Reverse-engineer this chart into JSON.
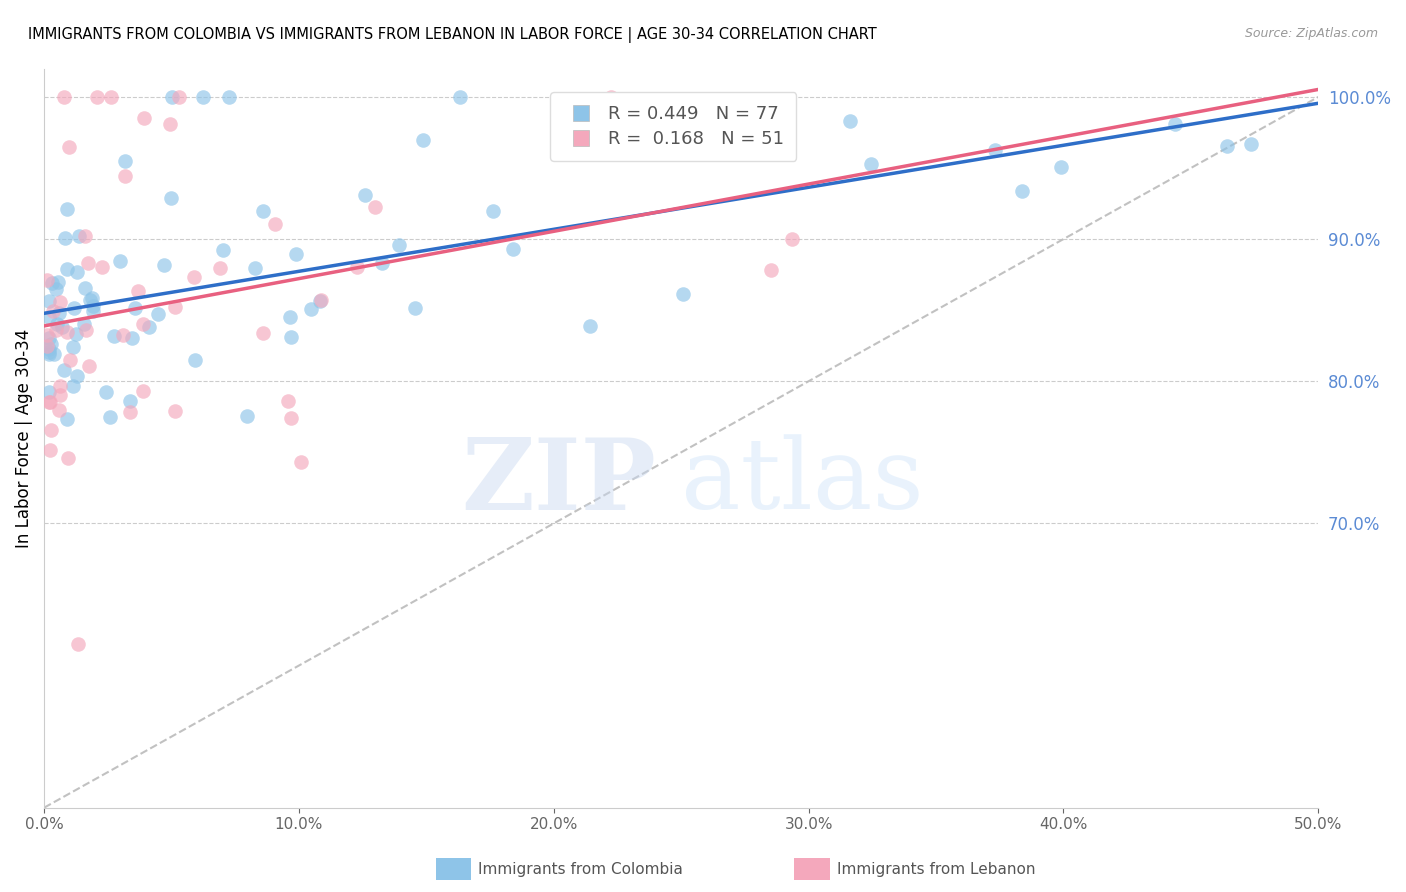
{
  "title": "IMMIGRANTS FROM COLOMBIA VS IMMIGRANTS FROM LEBANON IN LABOR FORCE | AGE 30-34 CORRELATION CHART",
  "source": "Source: ZipAtlas.com",
  "ylabel": "In Labor Force | Age 30-34",
  "R_colombia": 0.449,
  "N_colombia": 77,
  "R_lebanon": 0.168,
  "N_lebanon": 51,
  "xlim": [
    0.0,
    0.5
  ],
  "ylim": [
    0.5,
    1.02
  ],
  "yticks_right": [
    0.7,
    0.8,
    0.9,
    1.0
  ],
  "color_colombia": "#8EC4E8",
  "color_lebanon": "#F4A8BC",
  "color_trendline_colombia": "#2E6EC8",
  "color_trendline_lebanon": "#E86080",
  "color_refline": "#BBBBBB",
  "color_right_axis": "#5B8BD4",
  "legend_label_colombia": "Immigrants from Colombia",
  "legend_label_lebanon": "Immigrants from Lebanon"
}
